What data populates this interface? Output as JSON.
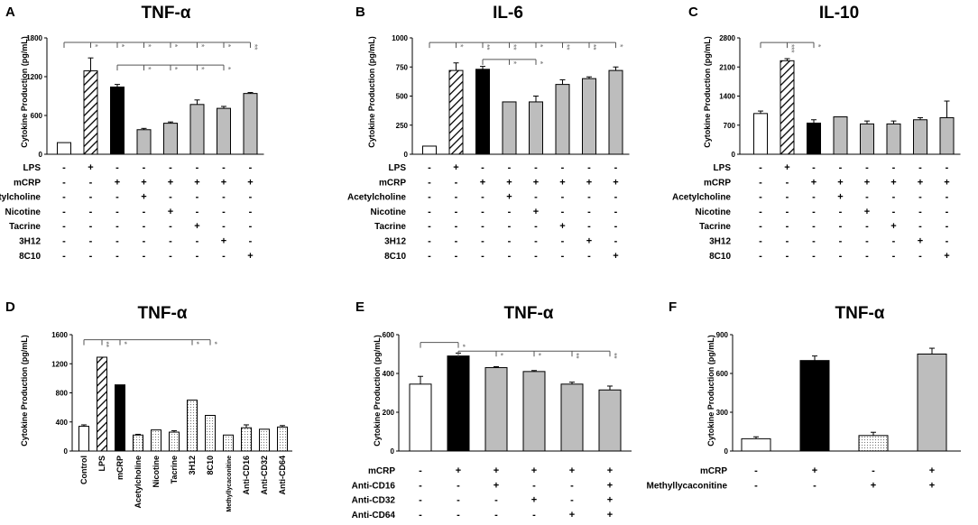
{
  "colors": {
    "white": "#ffffff",
    "black": "#000000",
    "gray": "#bdbdbd",
    "sig": "#8a8a8a"
  },
  "chart_data": [
    {
      "panel": "A",
      "type": "bar",
      "title": "TNF-α",
      "ylabel": "Cytokine Production (pg/mL)",
      "ylim": [
        0,
        1800
      ],
      "yticks": [
        0,
        600,
        1200,
        1800
      ],
      "values": [
        180,
        1290,
        1040,
        380,
        480,
        770,
        710,
        940
      ],
      "errors": [
        0,
        200,
        40,
        20,
        20,
        70,
        30,
        15
      ],
      "styles": [
        "white",
        "hatch",
        "black",
        "gray",
        "gray",
        "gray",
        "gray",
        "gray"
      ],
      "rows": [
        {
          "label": "LPS",
          "signs": [
            "-",
            "+",
            "-",
            "-",
            "-",
            "-",
            "-",
            "-"
          ]
        },
        {
          "label": "mCRP",
          "signs": [
            "-",
            "-",
            "+",
            "+",
            "+",
            "+",
            "+",
            "+"
          ]
        },
        {
          "label": "Acetylcholine",
          "signs": [
            "-",
            "-",
            "-",
            "+",
            "-",
            "-",
            "-",
            "-"
          ]
        },
        {
          "label": "Nicotine",
          "signs": [
            "-",
            "-",
            "-",
            "-",
            "+",
            "-",
            "-",
            "-"
          ]
        },
        {
          "label": "Tacrine",
          "signs": [
            "-",
            "-",
            "-",
            "-",
            "-",
            "+",
            "-",
            "-"
          ]
        },
        {
          "label": "3H12",
          "signs": [
            "-",
            "-",
            "-",
            "-",
            "-",
            "-",
            "+",
            "-"
          ]
        },
        {
          "label": "8C10",
          "signs": [
            "-",
            "-",
            "-",
            "-",
            "-",
            "-",
            "-",
            "+"
          ]
        }
      ],
      "brackets": [
        {
          "from": 0,
          "level": 1730,
          "marks": [
            [
              1,
              "*"
            ],
            [
              2,
              "*"
            ],
            [
              3,
              "*"
            ],
            [
              4,
              "*"
            ],
            [
              5,
              "*"
            ],
            [
              6,
              "*"
            ],
            [
              7,
              "**"
            ]
          ]
        },
        {
          "from": 2,
          "level": 1380,
          "marks": [
            [
              3,
              "*"
            ],
            [
              4,
              "*"
            ],
            [
              5,
              "*"
            ],
            [
              6,
              "*"
            ]
          ]
        }
      ]
    },
    {
      "panel": "B",
      "type": "bar",
      "title": "IL-6",
      "ylabel": "Cytokine Production (pg/mL)",
      "ylim": [
        0,
        1000
      ],
      "yticks": [
        0,
        250,
        500,
        750,
        1000
      ],
      "values": [
        70,
        720,
        730,
        450,
        450,
        600,
        650,
        720
      ],
      "errors": [
        0,
        65,
        25,
        0,
        50,
        40,
        15,
        30
      ],
      "styles": [
        "white",
        "hatch",
        "black",
        "gray",
        "gray",
        "gray",
        "gray",
        "gray"
      ],
      "rows": [
        {
          "label": "LPS",
          "signs": [
            "-",
            "+",
            "-",
            "-",
            "-",
            "-",
            "-",
            "-"
          ]
        },
        {
          "label": "mCRP",
          "signs": [
            "-",
            "-",
            "+",
            "+",
            "+",
            "+",
            "+",
            "+"
          ]
        },
        {
          "label": "Acetylcholine",
          "signs": [
            "-",
            "-",
            "-",
            "+",
            "-",
            "-",
            "-",
            "-"
          ]
        },
        {
          "label": "Nicotine",
          "signs": [
            "-",
            "-",
            "-",
            "-",
            "+",
            "-",
            "-",
            "-"
          ]
        },
        {
          "label": "Tacrine",
          "signs": [
            "-",
            "-",
            "-",
            "-",
            "-",
            "+",
            "-",
            "-"
          ]
        },
        {
          "label": "3H12",
          "signs": [
            "-",
            "-",
            "-",
            "-",
            "-",
            "-",
            "+",
            "-"
          ]
        },
        {
          "label": "8C10",
          "signs": [
            "-",
            "-",
            "-",
            "-",
            "-",
            "-",
            "-",
            "+"
          ]
        }
      ],
      "brackets": [
        {
          "from": 0,
          "level": 960,
          "marks": [
            [
              1,
              "*"
            ],
            [
              2,
              "**"
            ],
            [
              3,
              "**"
            ],
            [
              4,
              "*"
            ],
            [
              5,
              "**"
            ],
            [
              6,
              "**"
            ],
            [
              7,
              "*"
            ]
          ]
        },
        {
          "from": 2,
          "level": 815,
          "marks": [
            [
              3,
              "*"
            ],
            [
              4,
              "*"
            ]
          ]
        }
      ]
    },
    {
      "panel": "C",
      "type": "bar",
      "title": "IL-10",
      "ylabel": "Cytokine Production (pg/mL)",
      "ylim": [
        0,
        2800
      ],
      "yticks": [
        0,
        700,
        1400,
        2100,
        2800
      ],
      "values": [
        980,
        2250,
        750,
        900,
        730,
        730,
        830,
        880
      ],
      "errors": [
        60,
        50,
        80,
        0,
        70,
        70,
        50,
        400
      ],
      "styles": [
        "white",
        "hatch",
        "black",
        "gray",
        "gray",
        "gray",
        "gray",
        "gray"
      ],
      "rows": [
        {
          "label": "LPS",
          "signs": [
            "-",
            "+",
            "-",
            "-",
            "-",
            "-",
            "-",
            "-"
          ]
        },
        {
          "label": "mCRP",
          "signs": [
            "-",
            "-",
            "+",
            "+",
            "+",
            "+",
            "+",
            "+"
          ]
        },
        {
          "label": "Acetylcholine",
          "signs": [
            "-",
            "-",
            "-",
            "+",
            "-",
            "-",
            "-",
            "-"
          ]
        },
        {
          "label": "Nicotine",
          "signs": [
            "-",
            "-",
            "-",
            "-",
            "+",
            "-",
            "-",
            "-"
          ]
        },
        {
          "label": "Tacrine",
          "signs": [
            "-",
            "-",
            "-",
            "-",
            "-",
            "+",
            "-",
            "-"
          ]
        },
        {
          "label": "3H12",
          "signs": [
            "-",
            "-",
            "-",
            "-",
            "-",
            "-",
            "+",
            "-"
          ]
        },
        {
          "label": "8C10",
          "signs": [
            "-",
            "-",
            "-",
            "-",
            "-",
            "-",
            "-",
            "+"
          ]
        }
      ],
      "brackets": [
        {
          "from": 0,
          "level": 2690,
          "marks": [
            [
              1,
              "***"
            ],
            [
              2,
              "*"
            ]
          ]
        }
      ]
    },
    {
      "panel": "D",
      "type": "bar",
      "title": "TNF-α",
      "ylabel": "Cytokine Production (pg/mL)",
      "ylim": [
        0,
        1600
      ],
      "yticks": [
        0,
        400,
        800,
        1200,
        1600
      ],
      "categories": [
        "Control",
        "LPS",
        "mCRP",
        "Acetylcholine",
        "Nicotine",
        "Tacrine",
        "3H12",
        "8C10",
        "Methyllycaconitine",
        "Anti-CD16",
        "Anti-CD32",
        "Anti-CD64"
      ],
      "values": [
        340,
        1290,
        910,
        220,
        290,
        260,
        700,
        490,
        220,
        320,
        300,
        330
      ],
      "errors": [
        20,
        0,
        0,
        10,
        0,
        20,
        0,
        0,
        0,
        40,
        0,
        20
      ],
      "styles": [
        "white",
        "hatch",
        "black",
        "dots",
        "dots",
        "dots",
        "dots",
        "dots",
        "dots",
        "dots",
        "dots",
        "dots"
      ],
      "brackets": [
        {
          "from": 0,
          "level": 1530,
          "marks": [
            [
              1,
              "**"
            ],
            [
              2,
              "*"
            ],
            [
              6,
              "*"
            ],
            [
              7,
              "*"
            ]
          ]
        }
      ]
    },
    {
      "panel": "E",
      "type": "bar",
      "title": "TNF-α",
      "ylabel": "Cytokine Production (pg/mL)",
      "ylim": [
        0,
        600
      ],
      "yticks": [
        0,
        200,
        400,
        600
      ],
      "values": [
        345,
        490,
        430,
        410,
        345,
        315
      ],
      "errors": [
        40,
        15,
        5,
        5,
        10,
        20
      ],
      "styles": [
        "white",
        "black",
        "gray",
        "gray",
        "gray",
        "gray"
      ],
      "rows": [
        {
          "label": "mCRP",
          "signs": [
            "-",
            "+",
            "+",
            "+",
            "+",
            "+"
          ]
        },
        {
          "label": "Anti-CD16",
          "signs": [
            "-",
            "-",
            "+",
            "-",
            "-",
            "+"
          ]
        },
        {
          "label": "Anti-CD32",
          "signs": [
            "-",
            "-",
            "-",
            "+",
            "-",
            "+"
          ]
        },
        {
          "label": "Anti-CD64",
          "signs": [
            "-",
            "-",
            "-",
            "-",
            "+",
            "+"
          ]
        }
      ],
      "brackets": [
        {
          "from": 0,
          "level": 560,
          "marks": [
            [
              1,
              "*"
            ]
          ]
        },
        {
          "from": 1,
          "level": 515,
          "marks": [
            [
              2,
              "*"
            ],
            [
              3,
              "*"
            ],
            [
              4,
              "**"
            ],
            [
              5,
              "**"
            ]
          ]
        }
      ]
    },
    {
      "panel": "F",
      "type": "bar",
      "title": "TNF-α",
      "ylabel": "Cytokine Production (pg/mL)",
      "ylim": [
        0,
        900
      ],
      "yticks": [
        0,
        300,
        600,
        900
      ],
      "values": [
        95,
        700,
        120,
        750
      ],
      "errors": [
        15,
        35,
        25,
        45
      ],
      "styles": [
        "white",
        "black",
        "dots",
        "gray"
      ],
      "rows": [
        {
          "label": "mCRP",
          "signs": [
            "-",
            "+",
            "-",
            "+"
          ]
        },
        {
          "label": "Methyllycaconitine",
          "signs": [
            "-",
            "-",
            "+",
            "+"
          ]
        }
      ],
      "brackets": []
    }
  ]
}
